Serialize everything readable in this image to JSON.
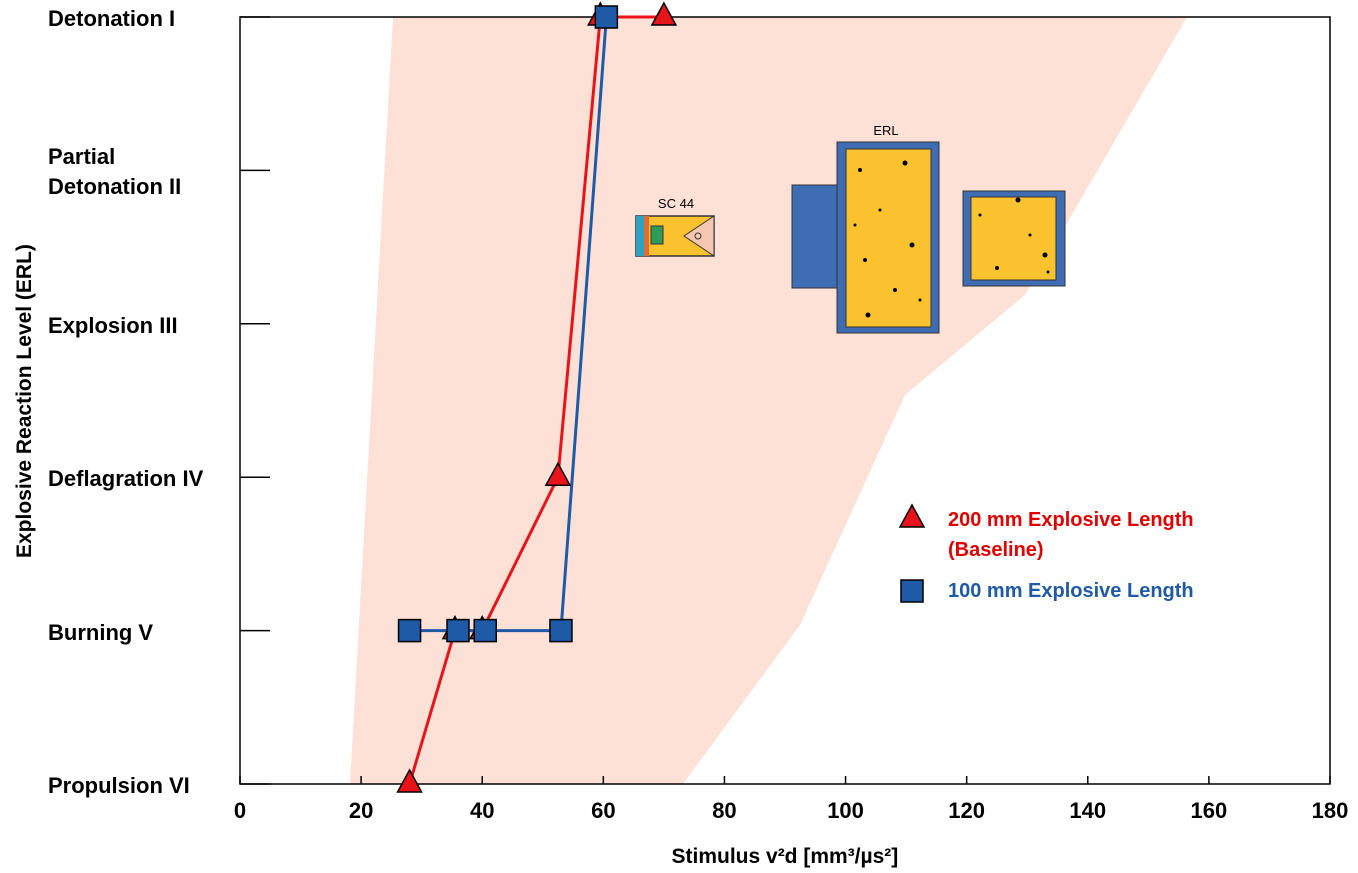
{
  "chart_data": {
    "type": "line",
    "x_label": "Stimulus v²d [mm³/µs²]",
    "y_label": "Explosive Reaction Level (ERL)",
    "xlim": [
      0,
      180
    ],
    "xticks": [
      0,
      20,
      40,
      60,
      80,
      100,
      120,
      140,
      160,
      180
    ],
    "ylim": [
      6,
      1
    ],
    "yticks": [
      {
        "value": 1,
        "label": "Detonation I"
      },
      {
        "value": 2,
        "label": "Partial Detonation II"
      },
      {
        "value": 3,
        "label": "Explosion III"
      },
      {
        "value": 4,
        "label": "Deflagration IV"
      },
      {
        "value": 5,
        "label": "Burning V"
      },
      {
        "value": 6,
        "label": "Propulsion VI"
      }
    ],
    "series": [
      {
        "name": "200 mm Explosive Length (Baseline)",
        "color": "#e8141a",
        "text_color": "#e00000",
        "marker": "triangle",
        "x": [
          28,
          35.5,
          40,
          52.5,
          59.5,
          70
        ],
        "values": [
          6,
          5,
          5,
          4,
          1,
          1
        ]
      },
      {
        "name": "100 mm Explosive Length",
        "color": "#1f5aa6",
        "text_color": "#1f5aa6",
        "marker": "square",
        "x": [
          28,
          36,
          40.5,
          53,
          60.5
        ],
        "values": [
          5,
          5,
          5,
          5,
          1
        ]
      }
    ]
  },
  "illustrations": {
    "sc44": "SC 44",
    "erl": "ERL"
  }
}
